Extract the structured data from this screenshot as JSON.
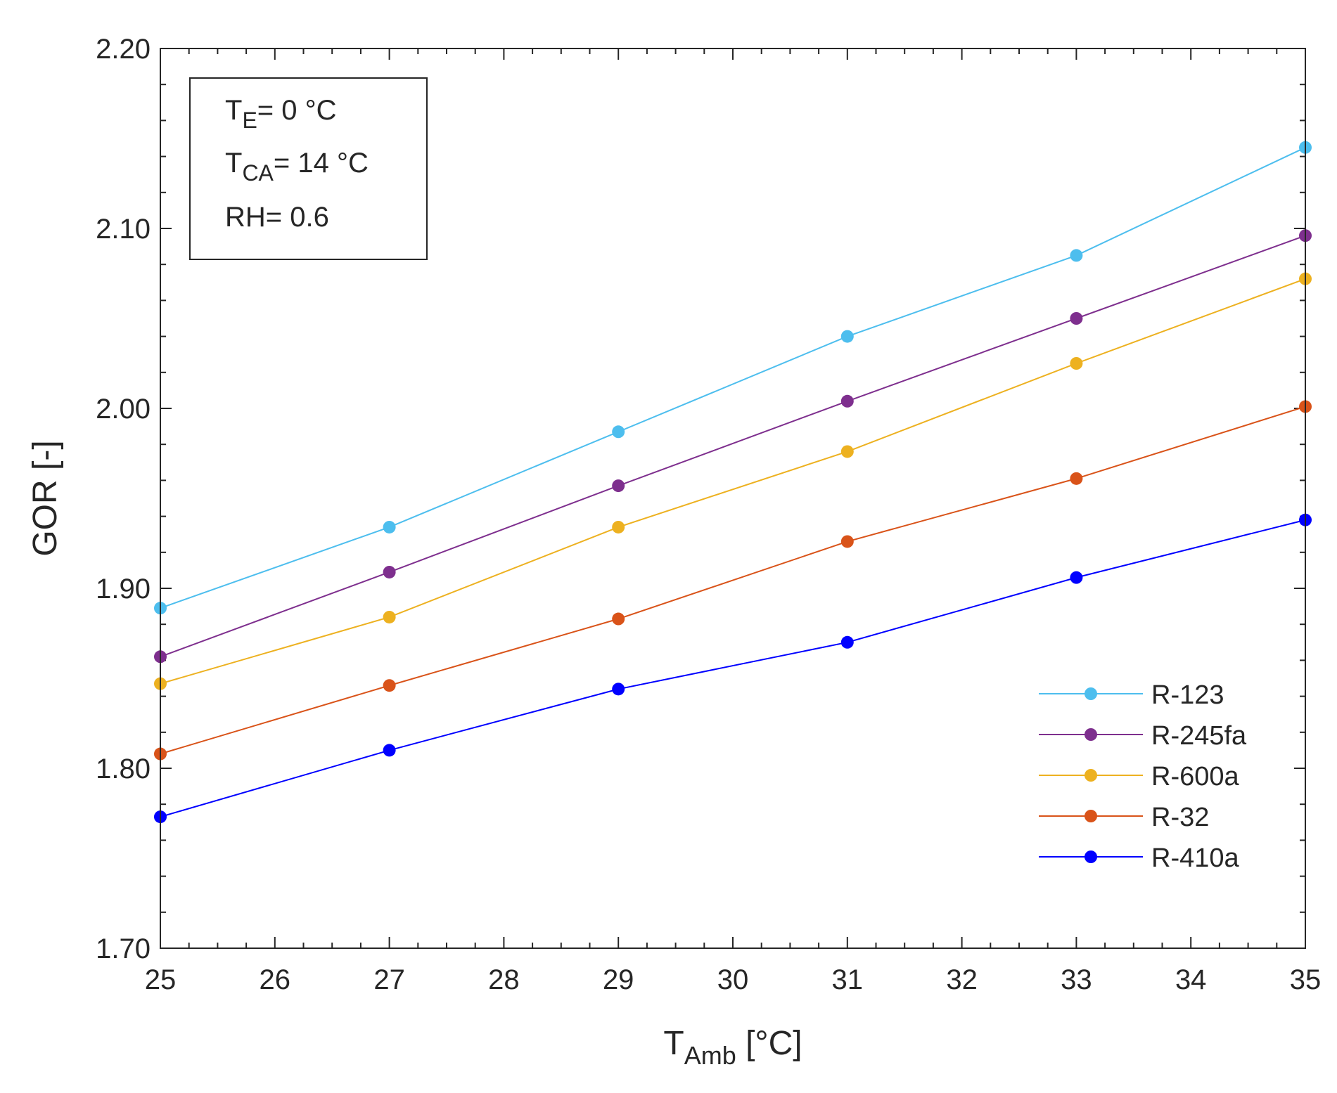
{
  "chart_data": {
    "type": "line",
    "title": "",
    "xlabel": {
      "main": "T",
      "sub": "Amb",
      "unit": " [°C]"
    },
    "ylabel": "GOR [-]",
    "xlim": [
      25,
      35
    ],
    "ylim": [
      1.7,
      2.2
    ],
    "xticks": [
      "25",
      "26",
      "27",
      "28",
      "29",
      "30",
      "31",
      "32",
      "33",
      "34",
      "35"
    ],
    "yticks": [
      "1.70",
      "1.80",
      "1.90",
      "2.00",
      "2.10",
      "2.20"
    ],
    "grid": false,
    "legend_position": "bottom-right",
    "x": [
      25,
      27,
      29,
      31,
      33,
      35
    ],
    "series": [
      {
        "name": "R-123",
        "color": "#4DBEEE",
        "values": [
          1.889,
          1.934,
          1.987,
          2.04,
          2.085,
          2.145
        ]
      },
      {
        "name": "R-245fa",
        "color": "#7E2F8E",
        "values": [
          1.862,
          1.909,
          1.957,
          2.004,
          2.05,
          2.096
        ]
      },
      {
        "name": "R-600a",
        "color": "#EDB120",
        "values": [
          1.847,
          1.884,
          1.934,
          1.976,
          2.025,
          2.072
        ]
      },
      {
        "name": "R-32",
        "color": "#D95319",
        "values": [
          1.808,
          1.846,
          1.883,
          1.926,
          1.961,
          2.001
        ]
      },
      {
        "name": "R-410a",
        "color": "#0000FF",
        "values": [
          1.773,
          1.81,
          1.844,
          1.87,
          1.906,
          1.938
        ]
      }
    ],
    "annotation": {
      "line1": {
        "main": "T",
        "sub": "E",
        "rest": "= 0 °C"
      },
      "line2": {
        "main": "T",
        "sub": "CA",
        "rest": "= 14 °C"
      },
      "line3": "RH= 0.6"
    }
  }
}
